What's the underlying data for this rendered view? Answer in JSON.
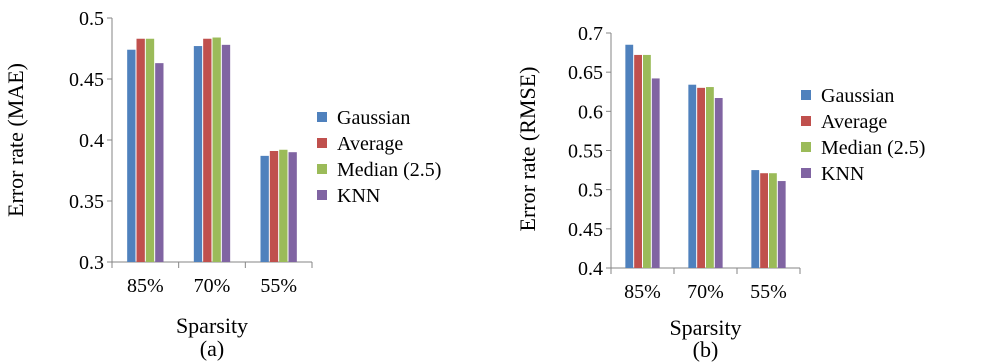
{
  "colors": {
    "Gaussian": "#4F81BD",
    "Average": "#C0504D",
    "Median (2.5)": "#9BBB59",
    "KNN": "#8064A2",
    "axis": "#868686"
  },
  "chart_data": [
    {
      "type": "bar",
      "panel_label": "(a)",
      "xlabel": "Sparsity",
      "ylabel": "Error rate (MAE)",
      "categories": [
        "85%",
        "70%",
        "55%"
      ],
      "ylim": [
        0.3,
        0.5
      ],
      "ytick_values": [
        0.3,
        0.35,
        0.4,
        0.45,
        0.5
      ],
      "ytick_labels": [
        "0.3",
        "0.35",
        "0.4",
        "0.45",
        "0.5"
      ],
      "grid": false,
      "legend_position": "right",
      "series": [
        {
          "name": "Gaussian",
          "values": [
            0.474,
            0.477,
            0.387
          ]
        },
        {
          "name": "Average",
          "values": [
            0.483,
            0.483,
            0.391
          ]
        },
        {
          "name": "Median (2.5)",
          "values": [
            0.483,
            0.484,
            0.392
          ]
        },
        {
          "name": "KNN",
          "values": [
            0.463,
            0.478,
            0.39
          ]
        }
      ]
    },
    {
      "type": "bar",
      "panel_label": "(b)",
      "xlabel": "Sparsity",
      "ylabel": "Error rate (RMSE)",
      "categories": [
        "85%",
        "70%",
        "55%"
      ],
      "ylim": [
        0.4,
        0.7
      ],
      "ytick_values": [
        0.4,
        0.45,
        0.5,
        0.55,
        0.6,
        0.65,
        0.7
      ],
      "ytick_labels": [
        "0.4",
        "0.45",
        "0.5",
        "0.55",
        "0.6",
        "0.65",
        "0.7"
      ],
      "grid": false,
      "legend_position": "right",
      "series": [
        {
          "name": "Gaussian",
          "values": [
            0.685,
            0.634,
            0.525
          ]
        },
        {
          "name": "Average",
          "values": [
            0.672,
            0.63,
            0.521
          ]
        },
        {
          "name": "Median (2.5)",
          "values": [
            0.672,
            0.631,
            0.521
          ]
        },
        {
          "name": "KNN",
          "values": [
            0.642,
            0.617,
            0.511
          ]
        }
      ]
    }
  ]
}
